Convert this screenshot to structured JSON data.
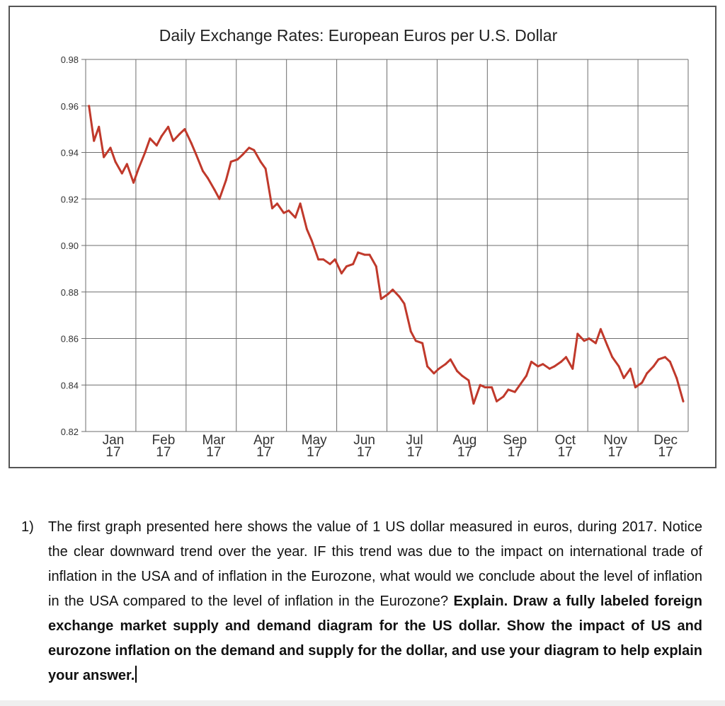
{
  "chart_data": {
    "type": "line",
    "title": "Daily Exchange Rates: European Euros per U.S. Dollar",
    "xlabel": "",
    "ylabel": "",
    "ylim": [
      0.82,
      0.98
    ],
    "yticks": [
      "0.98",
      "0.96",
      "0.94",
      "0.92",
      "0.90",
      "0.88",
      "0.86",
      "0.84",
      "0.82"
    ],
    "xticks": [
      {
        "month": "Jan",
        "year": "17"
      },
      {
        "month": "Feb",
        "year": "17"
      },
      {
        "month": "Mar",
        "year": "17"
      },
      {
        "month": "Apr",
        "year": "17"
      },
      {
        "month": "May",
        "year": "17"
      },
      {
        "month": "Jun",
        "year": "17"
      },
      {
        "month": "Jul",
        "year": "17"
      },
      {
        "month": "Aug",
        "year": "17"
      },
      {
        "month": "Sep",
        "year": "17"
      },
      {
        "month": "Oct",
        "year": "17"
      },
      {
        "month": "Nov",
        "year": "17"
      },
      {
        "month": "Dec",
        "year": "17"
      }
    ],
    "grid": true,
    "series": [
      {
        "color": "#c0392b",
        "x": [
          "2017-01-03",
          "2017-01-06",
          "2017-01-09",
          "2017-01-12",
          "2017-01-16",
          "2017-01-19",
          "2017-01-23",
          "2017-01-26",
          "2017-01-30",
          "2017-02-02",
          "2017-02-06",
          "2017-02-09",
          "2017-02-13",
          "2017-02-16",
          "2017-02-20",
          "2017-02-23",
          "2017-02-27",
          "2017-03-02",
          "2017-03-06",
          "2017-03-09",
          "2017-03-13",
          "2017-03-16",
          "2017-03-20",
          "2017-03-23",
          "2017-03-27",
          "2017-03-30",
          "2017-04-03",
          "2017-04-06",
          "2017-04-10",
          "2017-04-13",
          "2017-04-17",
          "2017-04-20",
          "2017-04-24",
          "2017-04-27",
          "2017-05-01",
          "2017-05-04",
          "2017-05-08",
          "2017-05-11",
          "2017-05-15",
          "2017-05-18",
          "2017-05-22",
          "2017-05-25",
          "2017-05-29",
          "2017-06-01",
          "2017-06-05",
          "2017-06-08",
          "2017-06-12",
          "2017-06-15",
          "2017-06-19",
          "2017-06-22",
          "2017-06-26",
          "2017-06-29",
          "2017-07-03",
          "2017-07-06",
          "2017-07-10",
          "2017-07-13",
          "2017-07-17",
          "2017-07-20",
          "2017-07-24",
          "2017-07-27",
          "2017-07-31",
          "2017-08-03",
          "2017-08-07",
          "2017-08-10",
          "2017-08-14",
          "2017-08-17",
          "2017-08-21",
          "2017-08-24",
          "2017-08-28",
          "2017-08-31",
          "2017-09-04",
          "2017-09-07",
          "2017-09-11",
          "2017-09-14",
          "2017-09-18",
          "2017-09-21",
          "2017-09-25",
          "2017-09-28",
          "2017-10-02",
          "2017-10-05",
          "2017-10-09",
          "2017-10-12",
          "2017-10-16",
          "2017-10-19",
          "2017-10-23",
          "2017-10-26",
          "2017-10-30",
          "2017-11-02",
          "2017-11-06",
          "2017-11-09",
          "2017-11-13",
          "2017-11-16",
          "2017-11-20",
          "2017-11-23",
          "2017-11-27",
          "2017-11-30",
          "2017-12-04",
          "2017-12-07",
          "2017-12-11",
          "2017-12-14",
          "2017-12-18",
          "2017-12-21",
          "2017-12-25",
          "2017-12-29"
        ],
        "y": [
          0.96,
          0.945,
          0.951,
          0.938,
          0.942,
          0.936,
          0.931,
          0.935,
          0.927,
          0.933,
          0.94,
          0.946,
          0.943,
          0.947,
          0.951,
          0.945,
          0.948,
          0.95,
          0.944,
          0.939,
          0.932,
          0.929,
          0.924,
          0.92,
          0.928,
          0.936,
          0.937,
          0.939,
          0.942,
          0.941,
          0.936,
          0.933,
          0.916,
          0.918,
          0.914,
          0.915,
          0.912,
          0.918,
          0.907,
          0.902,
          0.894,
          0.894,
          0.892,
          0.894,
          0.888,
          0.891,
          0.892,
          0.897,
          0.896,
          0.896,
          0.891,
          0.877,
          0.879,
          0.881,
          0.878,
          0.875,
          0.863,
          0.859,
          0.858,
          0.848,
          0.845,
          0.847,
          0.849,
          0.851,
          0.846,
          0.844,
          0.842,
          0.832,
          0.84,
          0.839,
          0.839,
          0.833,
          0.835,
          0.838,
          0.837,
          0.84,
          0.844,
          0.85,
          0.848,
          0.849,
          0.847,
          0.848,
          0.85,
          0.852,
          0.847,
          0.862,
          0.859,
          0.86,
          0.858,
          0.864,
          0.857,
          0.852,
          0.848,
          0.843,
          0.847,
          0.839,
          0.841,
          0.845,
          0.848,
          0.851,
          0.852,
          0.85,
          0.843,
          0.833
        ]
      }
    ]
  },
  "question": {
    "number": "1)",
    "text_normal": "The first graph presented here shows the value of 1 US dollar measured in euros, during 2017. Notice the clear downward trend over the year. IF this trend was due to the impact on international trade of inflation in the USA and of inflation in the Eurozone, what would we conclude about the level of inflation in the USA compared to the level of inflation in the Eurozone? ",
    "text_bold": "Explain. Draw a fully labeled foreign exchange market supply and demand diagram for the US dollar. Show the impact of US and eurozone inflation on the demand and supply for the dollar, and use your diagram to help explain your answer."
  }
}
